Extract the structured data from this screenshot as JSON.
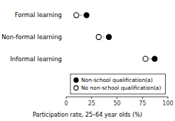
{
  "chart_data": {
    "type": "dumbbell",
    "orientation": "horizontal",
    "categories": [
      "Formal learning",
      "Non-formal learning",
      "Informal learning"
    ],
    "series": [
      {
        "name": "Non-school qualification(a)",
        "color": "#000000",
        "marker": "filled-circle",
        "values": [
          20,
          42,
          87
        ]
      },
      {
        "name": "No non-school qualification(a)",
        "color": "#000000",
        "marker": "open-circle",
        "values": [
          10,
          32,
          78
        ]
      }
    ],
    "color": "#999999",
    "line_style": "dashed",
    "xlim": [
      0,
      100
    ],
    "xticks": [
      0,
      25,
      50,
      75,
      100
    ],
    "xlabel": "Participation rate, 25–64 year olds (%)",
    "legend": "lower left",
    "grid": false
  }
}
